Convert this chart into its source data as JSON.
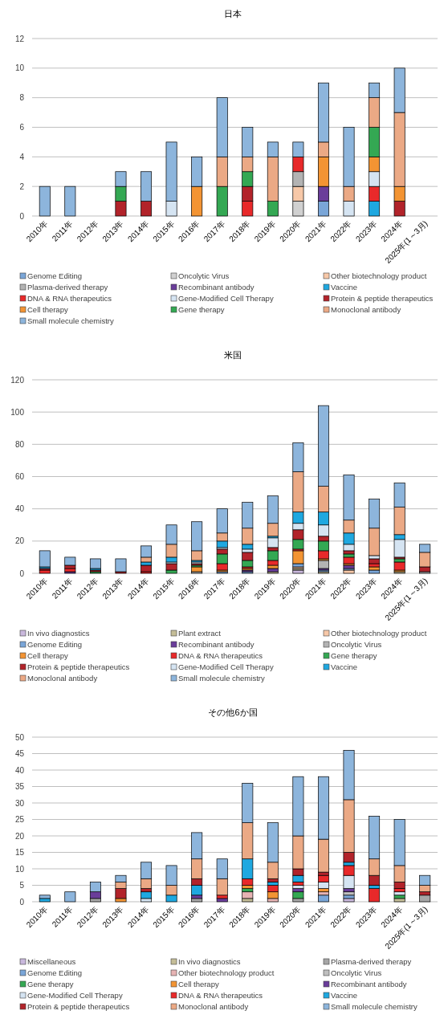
{
  "chart_data": [
    {
      "type": "bar",
      "stacked": true,
      "title": "日本",
      "categories": [
        "2010年",
        "2011年",
        "2012年",
        "2013年",
        "2014年",
        "2015年",
        "2016年",
        "2017年",
        "2018年",
        "2019年",
        "2020年",
        "2021年",
        "2022年",
        "2023年",
        "2024年",
        "2025年(1～3月)"
      ],
      "ylim": [
        0,
        12
      ],
      "yticks": [
        0,
        2,
        4,
        6,
        8,
        10,
        12
      ],
      "grid": "y",
      "legend": "bottom",
      "series": [
        {
          "name": "Genome Editing",
          "color": "#7aa6d8",
          "values": [
            0,
            0,
            0,
            0,
            0,
            0,
            0,
            0,
            0,
            0,
            0,
            1,
            0,
            0,
            0,
            0
          ]
        },
        {
          "name": "Oncolytic Virus",
          "color": "#d0d0d0",
          "values": [
            0,
            0,
            0,
            0,
            0,
            0,
            0,
            0,
            0,
            0,
            1,
            0,
            0,
            0,
            0,
            0
          ]
        },
        {
          "name": "Other biotechnology product",
          "color": "#f7c8a8",
          "values": [
            0,
            0,
            0,
            0,
            0,
            0,
            0,
            0,
            0,
            0,
            1,
            0,
            0,
            0,
            0,
            0
          ]
        },
        {
          "name": "Plasma-derived therapy",
          "color": "#b3b3b3",
          "values": [
            0,
            0,
            0,
            0,
            0,
            0,
            0,
            0,
            0,
            0,
            1,
            0,
            0,
            0,
            0,
            0
          ]
        },
        {
          "name": "Recombinant antibody",
          "color": "#6a3d9a",
          "values": [
            0,
            0,
            0,
            0,
            0,
            0,
            0,
            0,
            0,
            0,
            0,
            1,
            0,
            0,
            0,
            0
          ]
        },
        {
          "name": "Vaccine",
          "color": "#1fa8e0",
          "values": [
            0,
            0,
            0,
            0,
            0,
            0,
            0,
            0,
            0,
            0,
            0,
            0,
            0,
            1,
            0,
            0
          ]
        },
        {
          "name": "DNA & RNA therapeutics",
          "color": "#e8292a",
          "values": [
            0,
            0,
            0,
            0,
            0,
            0,
            0,
            0,
            1,
            0,
            1,
            0,
            0,
            1,
            0,
            0
          ]
        },
        {
          "name": "Gene-Modified Cell Therapy",
          "color": "#d5e4f2",
          "values": [
            0,
            0,
            0,
            0,
            0,
            1,
            0,
            0,
            0,
            0,
            0,
            0,
            1,
            1,
            0,
            0
          ]
        },
        {
          "name": "Protein & peptide therapeutics",
          "color": "#b2232a",
          "values": [
            0,
            0,
            0,
            1,
            1,
            0,
            0,
            0,
            1,
            0,
            0,
            0,
            0,
            0,
            1,
            0
          ]
        },
        {
          "name": "Cell therapy",
          "color": "#f39433",
          "values": [
            0,
            0,
            0,
            0,
            0,
            0,
            2,
            0,
            0,
            0,
            0,
            2,
            0,
            1,
            1,
            0
          ]
        },
        {
          "name": "Gene therapy",
          "color": "#34a853",
          "values": [
            0,
            0,
            0,
            1,
            0,
            0,
            0,
            2,
            1,
            1,
            0,
            0,
            0,
            2,
            0,
            0
          ]
        },
        {
          "name": "Monoclonal antibody",
          "color": "#eba985",
          "values": [
            0,
            0,
            0,
            0,
            0,
            0,
            0,
            2,
            1,
            3,
            0,
            1,
            1,
            2,
            5,
            0
          ]
        },
        {
          "name": "Small molecule chemistry",
          "color": "#8db5dc",
          "values": [
            2,
            2,
            0,
            1,
            2,
            4,
            2,
            4,
            2,
            1,
            1,
            4,
            4,
            1,
            3,
            0
          ]
        }
      ]
    },
    {
      "type": "bar",
      "stacked": true,
      "title": "米国",
      "categories": [
        "2010年",
        "2011年",
        "2012年",
        "2013年",
        "2014年",
        "2015年",
        "2016年",
        "2017年",
        "2018年",
        "2019年",
        "2020年",
        "2021年",
        "2022年",
        "2023年",
        "2024年",
        "2025年(1～3月)"
      ],
      "ylim": [
        0,
        120
      ],
      "yticks": [
        0,
        20,
        40,
        60,
        80,
        100,
        120
      ],
      "grid": "y",
      "legend": "bottom",
      "series": [
        {
          "name": "In vivo diagnostics",
          "color": "#c9b8dc",
          "values": [
            0,
            0,
            0,
            0,
            0,
            0,
            0,
            0,
            0,
            0,
            2,
            0,
            0,
            0,
            0,
            0
          ]
        },
        {
          "name": "Plant extract",
          "color": "#c4bd97",
          "values": [
            0,
            0,
            0,
            0,
            0,
            0,
            0,
            0,
            0,
            1,
            1,
            1,
            0,
            0,
            1,
            0
          ]
        },
        {
          "name": "Other biotechnology product",
          "color": "#f7c8a8",
          "values": [
            0,
            0,
            0,
            0,
            0,
            0,
            0,
            0,
            0,
            0,
            1,
            0,
            2,
            0,
            0,
            0
          ]
        },
        {
          "name": "Genome Editing",
          "color": "#7aa6d8",
          "values": [
            0,
            0,
            0,
            0,
            0,
            0,
            0,
            1,
            1,
            0,
            2,
            1,
            1,
            2,
            0,
            0
          ]
        },
        {
          "name": "Recombinant antibody",
          "color": "#6a3d9a",
          "values": [
            0,
            1,
            0,
            0,
            0,
            0,
            0,
            0,
            1,
            2,
            0,
            1,
            2,
            0,
            0,
            0
          ]
        },
        {
          "name": "Oncolytic Virus",
          "color": "#b3b3b3",
          "values": [
            0,
            0,
            0,
            0,
            0,
            0,
            1,
            0,
            0,
            0,
            0,
            5,
            0,
            0,
            0,
            1
          ]
        },
        {
          "name": "Cell therapy",
          "color": "#f39433",
          "values": [
            0,
            0,
            0,
            0,
            0,
            0,
            3,
            1,
            1,
            2,
            8,
            1,
            1,
            2,
            1,
            0
          ]
        },
        {
          "name": "DNA & RNA therapeutics",
          "color": "#e8292a",
          "values": [
            2,
            2,
            0,
            0,
            1,
            0,
            0,
            4,
            1,
            3,
            1,
            5,
            4,
            2,
            5,
            0
          ]
        },
        {
          "name": "Gene therapy",
          "color": "#34a853",
          "values": [
            0,
            0,
            1,
            0,
            0,
            2,
            1,
            6,
            4,
            6,
            6,
            6,
            2,
            0,
            2,
            0
          ]
        },
        {
          "name": "Protein & peptide therapeutics",
          "color": "#b2232a",
          "values": [
            1,
            2,
            1,
            1,
            4,
            4,
            1,
            3,
            5,
            2,
            6,
            3,
            2,
            3,
            1,
            3
          ]
        },
        {
          "name": "Gene-Modified Cell Therapy",
          "color": "#d5e4f2",
          "values": [
            0,
            0,
            0,
            0,
            0,
            1,
            1,
            1,
            2,
            6,
            4,
            7,
            4,
            2,
            11,
            0
          ]
        },
        {
          "name": "Vaccine",
          "color": "#1fa8e0",
          "values": [
            1,
            0,
            1,
            0,
            2,
            3,
            1,
            4,
            3,
            1,
            7,
            8,
            7,
            0,
            3,
            0
          ]
        },
        {
          "name": "Monoclonal antibody",
          "color": "#eba985",
          "values": [
            0,
            0,
            0,
            0,
            3,
            8,
            6,
            5,
            10,
            8,
            25,
            16,
            8,
            17,
            17,
            9
          ]
        },
        {
          "name": "Small molecule chemistry",
          "color": "#8db5dc",
          "values": [
            10,
            5,
            6,
            8,
            7,
            12,
            18,
            15,
            16,
            17,
            18,
            50,
            28,
            18,
            15,
            5
          ]
        }
      ]
    },
    {
      "type": "bar",
      "stacked": true,
      "title": "その他6か国",
      "categories": [
        "2010年",
        "2011年",
        "2012年",
        "2013年",
        "2014年",
        "2015年",
        "2016年",
        "2017年",
        "2018年",
        "2019年",
        "2020年",
        "2021年",
        "2022年",
        "2023年",
        "2024年",
        "2025年(1～3月)"
      ],
      "ylim": [
        0,
        50
      ],
      "yticks": [
        0,
        5,
        10,
        15,
        20,
        25,
        30,
        35,
        40,
        45,
        50
      ],
      "grid": "y",
      "legend": "bottom",
      "series": [
        {
          "name": "Miscellaneous",
          "color": "#c9b8dc",
          "values": [
            0,
            0,
            0,
            0,
            0,
            0,
            0,
            0,
            0,
            0,
            0,
            0,
            1,
            0,
            0,
            0
          ]
        },
        {
          "name": "In vivo diagnostics",
          "color": "#c4bd97",
          "values": [
            0,
            0,
            0,
            0,
            0,
            0,
            0,
            0,
            1,
            0,
            0,
            0,
            0,
            0,
            1,
            0
          ]
        },
        {
          "name": "Plasma-derived therapy",
          "color": "#a6a6a6",
          "values": [
            0,
            0,
            1,
            0,
            0,
            0,
            1,
            0,
            0,
            0,
            1,
            0,
            0,
            0,
            0,
            2
          ]
        },
        {
          "name": "Genome Editing",
          "color": "#7aa6d8",
          "values": [
            0,
            0,
            0,
            0,
            0,
            0,
            0,
            0,
            0,
            0,
            0,
            2,
            1,
            0,
            0,
            0
          ]
        },
        {
          "name": "Other biotechnology product",
          "color": "#e6b3b3",
          "values": [
            0,
            0,
            0,
            0,
            0,
            0,
            0,
            0,
            2,
            1,
            0,
            1,
            0,
            0,
            0,
            0
          ]
        },
        {
          "name": "Oncolytic Virus",
          "color": "#bfbfbf",
          "values": [
            0,
            0,
            0,
            0,
            0,
            0,
            0,
            0,
            0,
            0,
            0,
            0,
            1,
            0,
            0,
            0
          ]
        },
        {
          "name": "Gene therapy",
          "color": "#34a853",
          "values": [
            0,
            0,
            0,
            0,
            0,
            0,
            0,
            0,
            1,
            0,
            2,
            0,
            0,
            0,
            1,
            0
          ]
        },
        {
          "name": "Cell therapy",
          "color": "#f39433",
          "values": [
            0,
            0,
            0,
            1,
            0,
            0,
            0,
            0,
            1,
            2,
            0,
            1,
            0,
            0,
            0,
            0
          ]
        },
        {
          "name": "Recombinant antibody",
          "color": "#6a3d9a",
          "values": [
            0,
            0,
            2,
            0,
            0,
            0,
            1,
            1,
            0,
            0,
            1,
            0,
            1,
            0,
            0,
            0
          ]
        },
        {
          "name": "Gene-Modified Cell Therapy",
          "color": "#d5e4f2",
          "values": [
            0,
            0,
            0,
            0,
            1,
            0,
            0,
            0,
            0,
            0,
            1,
            2,
            4,
            0,
            1,
            0
          ]
        },
        {
          "name": "DNA & RNA therapeutics",
          "color": "#e8292a",
          "values": [
            0,
            0,
            0,
            0,
            0,
            0,
            0,
            1,
            2,
            2,
            1,
            2,
            3,
            4,
            1,
            0
          ]
        },
        {
          "name": "Vaccine",
          "color": "#1fa8e0",
          "values": [
            1,
            0,
            0,
            0,
            2,
            2,
            3,
            0,
            6,
            1,
            2,
            0,
            1,
            1,
            0,
            0
          ]
        },
        {
          "name": "Protein & peptide therapeutics",
          "color": "#b2232a",
          "values": [
            0,
            0,
            0,
            3,
            1,
            0,
            2,
            0,
            0,
            1,
            2,
            1,
            3,
            3,
            2,
            1
          ]
        },
        {
          "name": "Monoclonal antibody",
          "color": "#eba985",
          "values": [
            0,
            0,
            0,
            2,
            3,
            3,
            6,
            5,
            11,
            5,
            10,
            10,
            16,
            5,
            5,
            2
          ]
        },
        {
          "name": "Small molecule chemistry",
          "color": "#8db5dc",
          "values": [
            1,
            3,
            3,
            2,
            5,
            6,
            8,
            6,
            12,
            12,
            18,
            19,
            15,
            13,
            14,
            3
          ]
        }
      ]
    }
  ]
}
